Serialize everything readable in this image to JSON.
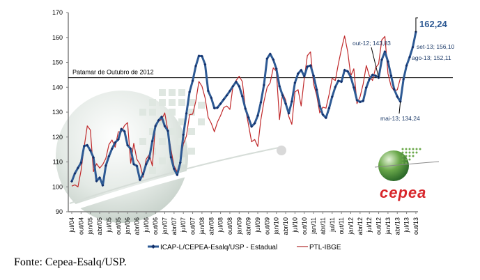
{
  "chart_data": {
    "type": "line",
    "title": "",
    "xlabel": "",
    "ylabel": "",
    "ylim": [
      90,
      170
    ],
    "yticks": [
      90,
      100,
      110,
      120,
      130,
      140,
      150,
      160,
      170
    ],
    "grid": false,
    "x_start": "jul/04",
    "x_end": "out/13",
    "frequency": "monthly",
    "tick_labels": [
      "jul/04",
      "out/04",
      "jan/05",
      "abr/05",
      "jul/05",
      "out/05",
      "jan/06",
      "abr/06",
      "jul/06",
      "out/06",
      "jan/07",
      "abr/07",
      "jul/07",
      "out/07",
      "jan/08",
      "abr/08",
      "jul/08",
      "out/08",
      "jan/09",
      "abr/09",
      "jul/09",
      "out/09",
      "jan/10",
      "abr/10",
      "jul/10",
      "out/10",
      "jan/11",
      "abr/11",
      "jul/11",
      "out/11",
      "jan/12",
      "abr/12",
      "jul/12",
      "out/12",
      "jan/13",
      "abr/13",
      "jul/13",
      "out/13"
    ],
    "series": [
      {
        "name": "ICAP-L/CEPEA-Esalq/USP - Estadual",
        "color": "#2e5a94",
        "marker": "diamond",
        "values": [
          102.2,
          105.4,
          107.6,
          109.7,
          116.4,
          116.7,
          114.6,
          111.8,
          102.3,
          103.7,
          100.6,
          108.5,
          112.3,
          115.3,
          117.8,
          119,
          123.2,
          122.3,
          116.7,
          115.3,
          109.1,
          108.4,
          102.8,
          105.1,
          109.1,
          111.6,
          118.4,
          124.4,
          126.7,
          128.1,
          124.4,
          122.5,
          111.9,
          107.2,
          104.8,
          109.7,
          120.9,
          129.5,
          138.1,
          142.6,
          148.5,
          152.6,
          152.5,
          149.2,
          138.5,
          135.7,
          131.6,
          131.8,
          133.4,
          135.1,
          136.7,
          138.5,
          140.4,
          142.2,
          140.4,
          136.4,
          131.4,
          127.9,
          124.2,
          125.5,
          128.6,
          133.9,
          140.9,
          151.5,
          153.4,
          151.1,
          147.4,
          140.4,
          136.7,
          133.4,
          129.5,
          134.3,
          141.8,
          145.5,
          146.9,
          144.4,
          148.3,
          148.7,
          144.6,
          139,
          132.5,
          129,
          127.7,
          131.6,
          136.2,
          140.1,
          142.6,
          142.2,
          146.9,
          146.4,
          144.1,
          139.9,
          134.8,
          134.1,
          134.5,
          139.9,
          143.2,
          145,
          144.6,
          143.83,
          151,
          154.3,
          150.3,
          144.6,
          139.2,
          136.2,
          134.24,
          143.2,
          148.7,
          152.11,
          156.1,
          162.24
        ]
      },
      {
        "name": "PTL-IBGE",
        "color": "#c0282a",
        "marker": "none",
        "values": [
          100.3,
          100.8,
          100,
          106.5,
          116,
          124.5,
          122.8,
          106.1,
          109.3,
          107.5,
          109,
          111.4,
          117,
          118.8,
          115.9,
          122.1,
          122.1,
          124.6,
          125.8,
          109.5,
          117.5,
          111.1,
          109.1,
          103.9,
          111.1,
          113,
          108.4,
          125.1,
          126.3,
          127.1,
          129.7,
          122.5,
          115,
          108.4,
          106,
          110.2,
          117.2,
          120.4,
          129,
          129.2,
          134.3,
          142.3,
          140.4,
          135.7,
          127.9,
          125.5,
          122.1,
          126,
          128.6,
          131.8,
          132.5,
          131.1,
          140.4,
          142.7,
          144.4,
          142.3,
          131.6,
          125.1,
          118.1,
          119,
          116.2,
          126.9,
          134.3,
          139.9,
          141.8,
          147.8,
          146.4,
          127,
          137.6,
          134.8,
          128.3,
          125.1,
          138.1,
          139,
          132.5,
          143.6,
          152.7,
          154.2,
          141.3,
          136.7,
          129.7,
          132,
          131.6,
          137.1,
          143.6,
          142.7,
          149.4,
          155.4,
          160.6,
          154.3,
          144.6,
          147.4,
          133.4,
          136.2,
          141.3,
          148.7,
          144.6,
          142.7,
          147.8,
          149.4,
          159,
          160.4,
          145.5,
          140.4,
          138.5,
          139,
          143.6,
          null,
          null,
          null,
          null,
          null
        ]
      }
    ],
    "reference_line": {
      "label": "Patamar de Outubro de 2012",
      "value": 143.83
    },
    "annotations": [
      {
        "text": "162,24",
        "index": 111,
        "style": "big"
      },
      {
        "text": "set-13; 156,10",
        "index": 110
      },
      {
        "text": "ago-13; 152,11",
        "index": 109
      },
      {
        "text": "out-12; 143,83",
        "index": 99
      },
      {
        "text": "mai-13; 134,24",
        "index": 106
      }
    ],
    "legend_position": "bottom"
  },
  "logo": {
    "text": "cepea"
  },
  "source": "Fonte: Cepea-Esalq/USP."
}
